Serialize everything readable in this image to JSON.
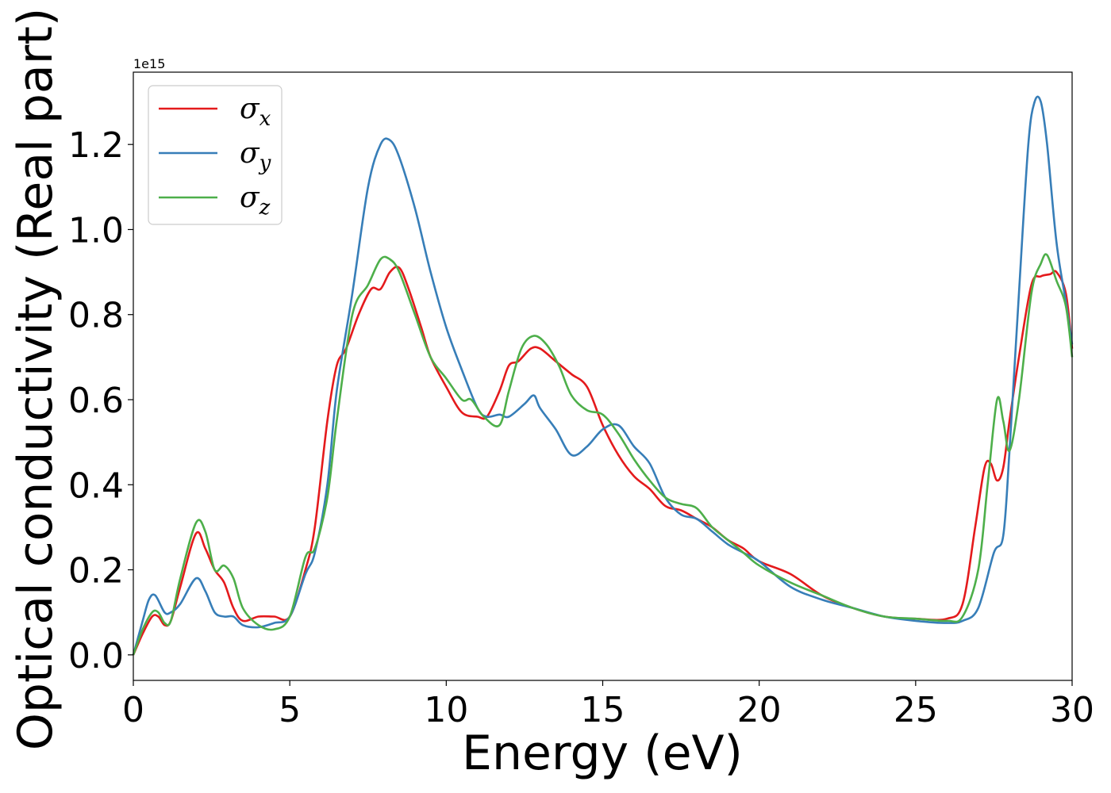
{
  "chart_data": {
    "type": "line",
    "xlabel": "Energy (eV)",
    "ylabel": "Optical conductivity (Real part)",
    "y_offset_label": "1e15",
    "xlim": [
      0,
      30
    ],
    "ylim": [
      -0.06,
      1.37
    ],
    "xticks": [
      0,
      5,
      10,
      15,
      20,
      25,
      30
    ],
    "xtick_labels": [
      "0",
      "5",
      "10",
      "15",
      "20",
      "25",
      "30"
    ],
    "yticks": [
      0.0,
      0.2,
      0.4,
      0.6,
      0.8,
      1.0,
      1.2
    ],
    "ytick_labels": [
      "0.0",
      "0.2",
      "0.4",
      "0.6",
      "0.8",
      "1.0",
      "1.2"
    ],
    "grid": false,
    "legend_position": "top-left",
    "series": [
      {
        "name": "σ",
        "subscript": "x",
        "color": "#e41a1c",
        "x": [
          0,
          0.3,
          0.6,
          0.8,
          1.0,
          1.2,
          1.5,
          2.0,
          2.3,
          2.6,
          2.9,
          3.2,
          3.5,
          4.0,
          4.5,
          5.0,
          5.5,
          5.8,
          6.2,
          6.5,
          6.8,
          7.2,
          7.6,
          7.9,
          8.2,
          8.5,
          8.8,
          9.2,
          9.5,
          10.0,
          10.5,
          11.0,
          11.3,
          11.7,
          12.0,
          12.3,
          12.7,
          13.0,
          13.5,
          14.0,
          14.5,
          15.0,
          15.5,
          16.0,
          16.5,
          17.0,
          17.5,
          18.0,
          18.5,
          19.0,
          19.5,
          20.0,
          21.0,
          22.0,
          23.0,
          24.0,
          25.0,
          26.0,
          26.5,
          26.9,
          27.2,
          27.4,
          27.6,
          27.8,
          28.0,
          28.3,
          28.7,
          29.0,
          29.3,
          29.5,
          29.8,
          30.0
        ],
        "y": [
          0.0,
          0.05,
          0.09,
          0.09,
          0.07,
          0.08,
          0.16,
          0.285,
          0.25,
          0.2,
          0.17,
          0.11,
          0.08,
          0.09,
          0.09,
          0.09,
          0.2,
          0.3,
          0.55,
          0.68,
          0.72,
          0.8,
          0.86,
          0.86,
          0.9,
          0.91,
          0.86,
          0.77,
          0.7,
          0.63,
          0.57,
          0.56,
          0.56,
          0.62,
          0.68,
          0.69,
          0.72,
          0.72,
          0.69,
          0.66,
          0.63,
          0.54,
          0.47,
          0.42,
          0.39,
          0.35,
          0.34,
          0.32,
          0.3,
          0.27,
          0.25,
          0.22,
          0.19,
          0.14,
          0.11,
          0.09,
          0.085,
          0.085,
          0.12,
          0.3,
          0.44,
          0.45,
          0.41,
          0.44,
          0.55,
          0.7,
          0.87,
          0.89,
          0.895,
          0.9,
          0.85,
          0.72
        ]
      },
      {
        "name": "σ",
        "subscript": "y",
        "color": "#377eb8",
        "x": [
          0,
          0.3,
          0.5,
          0.7,
          1.0,
          1.2,
          1.5,
          2.0,
          2.3,
          2.6,
          2.9,
          3.2,
          3.5,
          4.0,
          4.5,
          5.0,
          5.5,
          5.8,
          6.2,
          6.5,
          7.0,
          7.5,
          7.9,
          8.2,
          8.5,
          9.0,
          9.5,
          10.0,
          10.5,
          11.0,
          11.3,
          11.7,
          12.0,
          12.5,
          12.8,
          13.0,
          13.5,
          14.0,
          14.5,
          15.0,
          15.5,
          16.0,
          16.5,
          17.0,
          17.5,
          18.0,
          18.5,
          19.0,
          19.5,
          20.0,
          21.0,
          22.0,
          23.0,
          24.0,
          25.0,
          26.0,
          26.5,
          27.0,
          27.5,
          27.8,
          28.0,
          28.3,
          28.6,
          28.8,
          29.0,
          29.2,
          29.5,
          29.8,
          30.0
        ],
        "y": [
          0.0,
          0.08,
          0.13,
          0.14,
          0.1,
          0.1,
          0.12,
          0.18,
          0.15,
          0.1,
          0.09,
          0.09,
          0.07,
          0.065,
          0.075,
          0.09,
          0.19,
          0.24,
          0.4,
          0.62,
          0.85,
          1.1,
          1.2,
          1.21,
          1.17,
          1.05,
          0.9,
          0.77,
          0.67,
          0.58,
          0.56,
          0.565,
          0.56,
          0.59,
          0.61,
          0.58,
          0.53,
          0.47,
          0.49,
          0.53,
          0.54,
          0.49,
          0.45,
          0.37,
          0.33,
          0.32,
          0.29,
          0.26,
          0.24,
          0.22,
          0.16,
          0.13,
          0.11,
          0.09,
          0.08,
          0.075,
          0.08,
          0.11,
          0.24,
          0.28,
          0.48,
          0.85,
          1.2,
          1.3,
          1.3,
          1.2,
          0.97,
          0.83,
          0.73
        ]
      },
      {
        "name": "σ",
        "subscript": "z",
        "color": "#4daf4a",
        "x": [
          0,
          0.3,
          0.6,
          0.8,
          1.0,
          1.2,
          1.5,
          2.0,
          2.3,
          2.6,
          2.9,
          3.2,
          3.5,
          4.0,
          4.5,
          5.0,
          5.5,
          5.8,
          6.2,
          6.5,
          7.0,
          7.5,
          7.9,
          8.2,
          8.5,
          9.0,
          9.5,
          10.0,
          10.5,
          10.8,
          11.2,
          11.7,
          12.0,
          12.4,
          12.8,
          13.2,
          13.6,
          14.0,
          14.5,
          15.0,
          15.5,
          16.0,
          16.5,
          17.0,
          17.5,
          18.0,
          18.5,
          19.0,
          19.5,
          20.0,
          21.0,
          22.0,
          23.0,
          24.0,
          25.0,
          26.0,
          26.5,
          27.0,
          27.3,
          27.6,
          27.8,
          28.0,
          28.3,
          28.7,
          29.0,
          29.2,
          29.5,
          29.8,
          30.0
        ],
        "y": [
          0.0,
          0.06,
          0.1,
          0.1,
          0.075,
          0.08,
          0.18,
          0.31,
          0.29,
          0.2,
          0.21,
          0.18,
          0.11,
          0.07,
          0.06,
          0.09,
          0.23,
          0.25,
          0.37,
          0.55,
          0.8,
          0.87,
          0.93,
          0.93,
          0.9,
          0.8,
          0.7,
          0.65,
          0.6,
          0.6,
          0.56,
          0.54,
          0.62,
          0.72,
          0.75,
          0.73,
          0.68,
          0.61,
          0.575,
          0.565,
          0.52,
          0.46,
          0.41,
          0.37,
          0.355,
          0.345,
          0.3,
          0.27,
          0.24,
          0.21,
          0.17,
          0.14,
          0.11,
          0.09,
          0.085,
          0.08,
          0.09,
          0.2,
          0.4,
          0.6,
          0.55,
          0.48,
          0.6,
          0.85,
          0.92,
          0.94,
          0.88,
          0.82,
          0.7
        ]
      }
    ]
  }
}
